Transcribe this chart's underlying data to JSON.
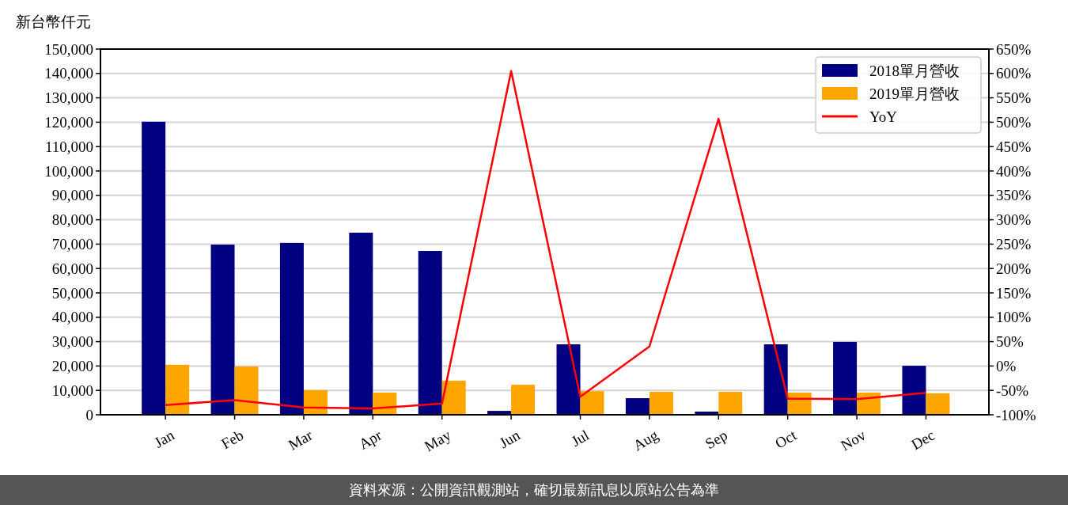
{
  "chart_data": {
    "type": "bar",
    "ylabel": "新台幣仟元",
    "categories": [
      "Jan",
      "Feb",
      "Mar",
      "Apr",
      "May",
      "Jun",
      "Jul",
      "Aug",
      "Sep",
      "Oct",
      "Nov",
      "Dec"
    ],
    "series": [
      {
        "name": "2018單月營收",
        "color": "#000080",
        "values": [
          120200,
          69800,
          70500,
          74700,
          67200,
          1600,
          28900,
          6800,
          1300,
          28900,
          29900,
          20100
        ]
      },
      {
        "name": "2019單月營收",
        "color": "#ffa500",
        "values": [
          20500,
          19800,
          10100,
          9100,
          14000,
          12300,
          9700,
          9400,
          9400,
          9100,
          9100,
          8800
        ]
      },
      {
        "name": "YoY",
        "type": "line",
        "axis": "y2",
        "color": "#ff0000",
        "values": [
          -80,
          -70,
          -85,
          -87,
          -77,
          605,
          -63,
          40,
          507,
          -67,
          -68,
          -55
        ]
      }
    ],
    "ylim": [
      0,
      150000
    ],
    "yticks": [
      {
        "value": 0,
        "label": "0"
      },
      {
        "value": 10000,
        "label": "10,000"
      },
      {
        "value": 20000,
        "label": "20,000"
      },
      {
        "value": 30000,
        "label": "30,000"
      },
      {
        "value": 40000,
        "label": "40,000"
      },
      {
        "value": 50000,
        "label": "50,000"
      },
      {
        "value": 60000,
        "label": "60,000"
      },
      {
        "value": 70000,
        "label": "70,000"
      },
      {
        "value": 80000,
        "label": "80,000"
      },
      {
        "value": 90000,
        "label": "90,000"
      },
      {
        "value": 100000,
        "label": "100,000"
      },
      {
        "value": 110000,
        "label": "110,000"
      },
      {
        "value": 120000,
        "label": "120,000"
      },
      {
        "value": 130000,
        "label": "130,000"
      },
      {
        "value": 140000,
        "label": "140,000"
      },
      {
        "value": 150000,
        "label": "150,000"
      }
    ],
    "y2lim": [
      -100,
      650
    ],
    "y2ticks": [
      {
        "value": -100,
        "label": "-100%"
      },
      {
        "value": -50,
        "label": "-50%"
      },
      {
        "value": 0,
        "label": "0%"
      },
      {
        "value": 50,
        "label": "50%"
      },
      {
        "value": 100,
        "label": "100%"
      },
      {
        "value": 150,
        "label": "150%"
      },
      {
        "value": 200,
        "label": "200%"
      },
      {
        "value": 250,
        "label": "250%"
      },
      {
        "value": 300,
        "label": "300%"
      },
      {
        "value": 350,
        "label": "350%"
      },
      {
        "value": 400,
        "label": "400%"
      },
      {
        "value": 450,
        "label": "450%"
      },
      {
        "value": 500,
        "label": "500%"
      },
      {
        "value": 550,
        "label": "550%"
      },
      {
        "value": 600,
        "label": "600%"
      },
      {
        "value": 650,
        "label": "650%"
      }
    ],
    "grid": "y",
    "legend": "top right",
    "annotations": [
      "資料來源：公開資訊觀測站，確切最新訊息以原站公告為準"
    ]
  }
}
